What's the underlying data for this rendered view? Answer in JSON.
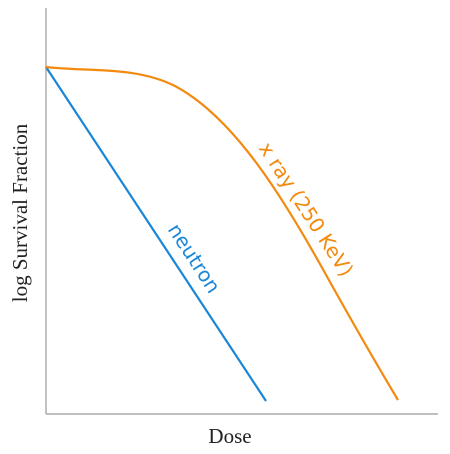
{
  "axes": {
    "x_label": "Dose",
    "y_label": "log Survival Fraction"
  },
  "curves": [
    {
      "label": "neutron"
    },
    {
      "label": "x ray (250 KeV)"
    }
  ]
}
